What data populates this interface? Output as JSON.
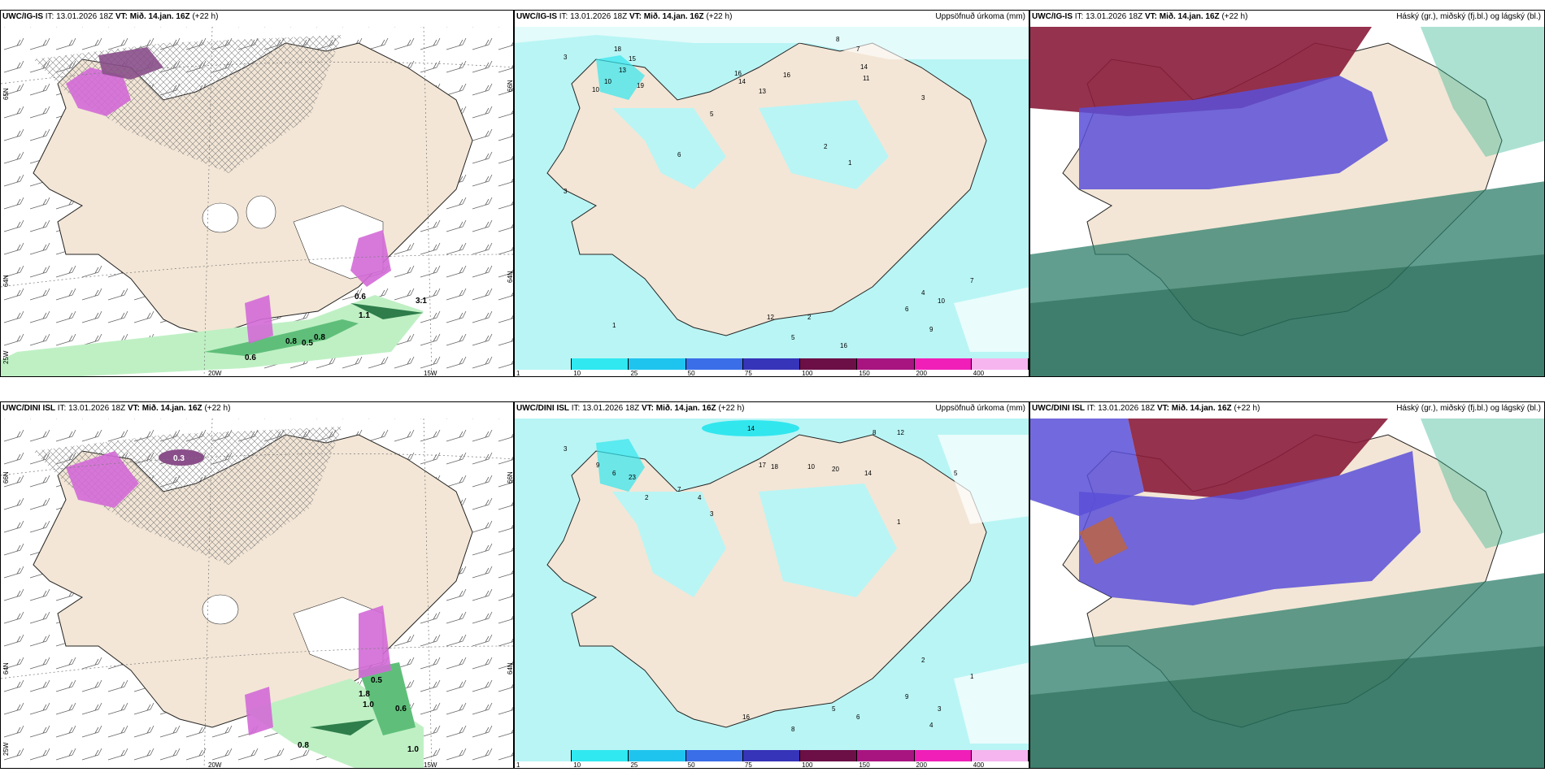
{
  "colors": {
    "land": "#f3e6d6",
    "precip_light": "#b9f5f5",
    "precip_mid": "#32e6ee",
    "precip_blue": "#3a5ee6",
    "violet": "#5a4fd8",
    "maroon": "#8a1c3a",
    "green_light": "#bff0c4",
    "green_dark": "#2e7d4b",
    "teal": "#2fb38f",
    "magenta": "#d36ad7",
    "cloud_white": "#ffffff"
  },
  "rows": [
    {
      "model": "UWC/IG-IS",
      "init": "IT: 13.01.2026 18Z",
      "valid": "VT: Mið. 14.jan. 16Z",
      "lead": "(+22 h)",
      "precip_title": "Uppsöfnuð úrkoma (mm)",
      "cloud_title": "Háský (gr.), miðský (fj.bl.) og lágský (bl.)",
      "lat_labels": [
        "65N",
        "64N",
        "25W"
      ],
      "lat_labels_right": [
        "66N",
        "64N"
      ],
      "lon_labels": [
        "20W",
        "15W"
      ],
      "left_values": [
        "0.6",
        "0.8",
        "0.5",
        "0.8",
        "1.1",
        "0.6",
        "3.1"
      ],
      "precip_values": [
        "3",
        "10",
        "18",
        "13",
        "15",
        "19",
        "10",
        "16",
        "14",
        "13",
        "16",
        "8",
        "7",
        "14",
        "11",
        "5",
        "6",
        "3",
        "2",
        "1",
        "3",
        "10",
        "4",
        "6",
        "9",
        "16",
        "12",
        "5",
        "2",
        "1",
        "7"
      ]
    },
    {
      "model": "UWC/DINI ISL",
      "init": "IT: 13.01.2026 18Z",
      "valid": "VT: Mið. 14.jan. 16Z",
      "lead": "(+22 h)",
      "precip_title": "Uppsöfnuð úrkoma (mm)",
      "cloud_title": "Háský (gr.), miðský (fj.bl.) og lágský (bl.)",
      "lat_labels": [
        "66N",
        "64N",
        "25W"
      ],
      "lat_labels_right": [
        "66N",
        "64N"
      ],
      "lon_labels": [
        "20W",
        "15W"
      ],
      "left_values": [
        "0.3",
        "0.8",
        "1.0",
        "0.6",
        "0.5",
        "1.8",
        "1.0"
      ],
      "precip_values": [
        "14",
        "3",
        "23",
        "17",
        "18",
        "10",
        "20",
        "14",
        "8",
        "9",
        "6",
        "2",
        "5",
        "1",
        "7",
        "4",
        "3",
        "12",
        "16",
        "8",
        "9",
        "5",
        "6",
        "2",
        "3",
        "4",
        "1"
      ]
    }
  ],
  "legend": {
    "labels": [
      "1",
      "10",
      "25",
      "50",
      "75",
      "100",
      "150",
      "200",
      "400"
    ],
    "colors": [
      "#b9f5f5",
      "#30e8f0",
      "#1fc4ee",
      "#3a6ee8",
      "#3634b8",
      "#6b0f46",
      "#a81581",
      "#f01fb8",
      "#f6b5ee"
    ]
  }
}
